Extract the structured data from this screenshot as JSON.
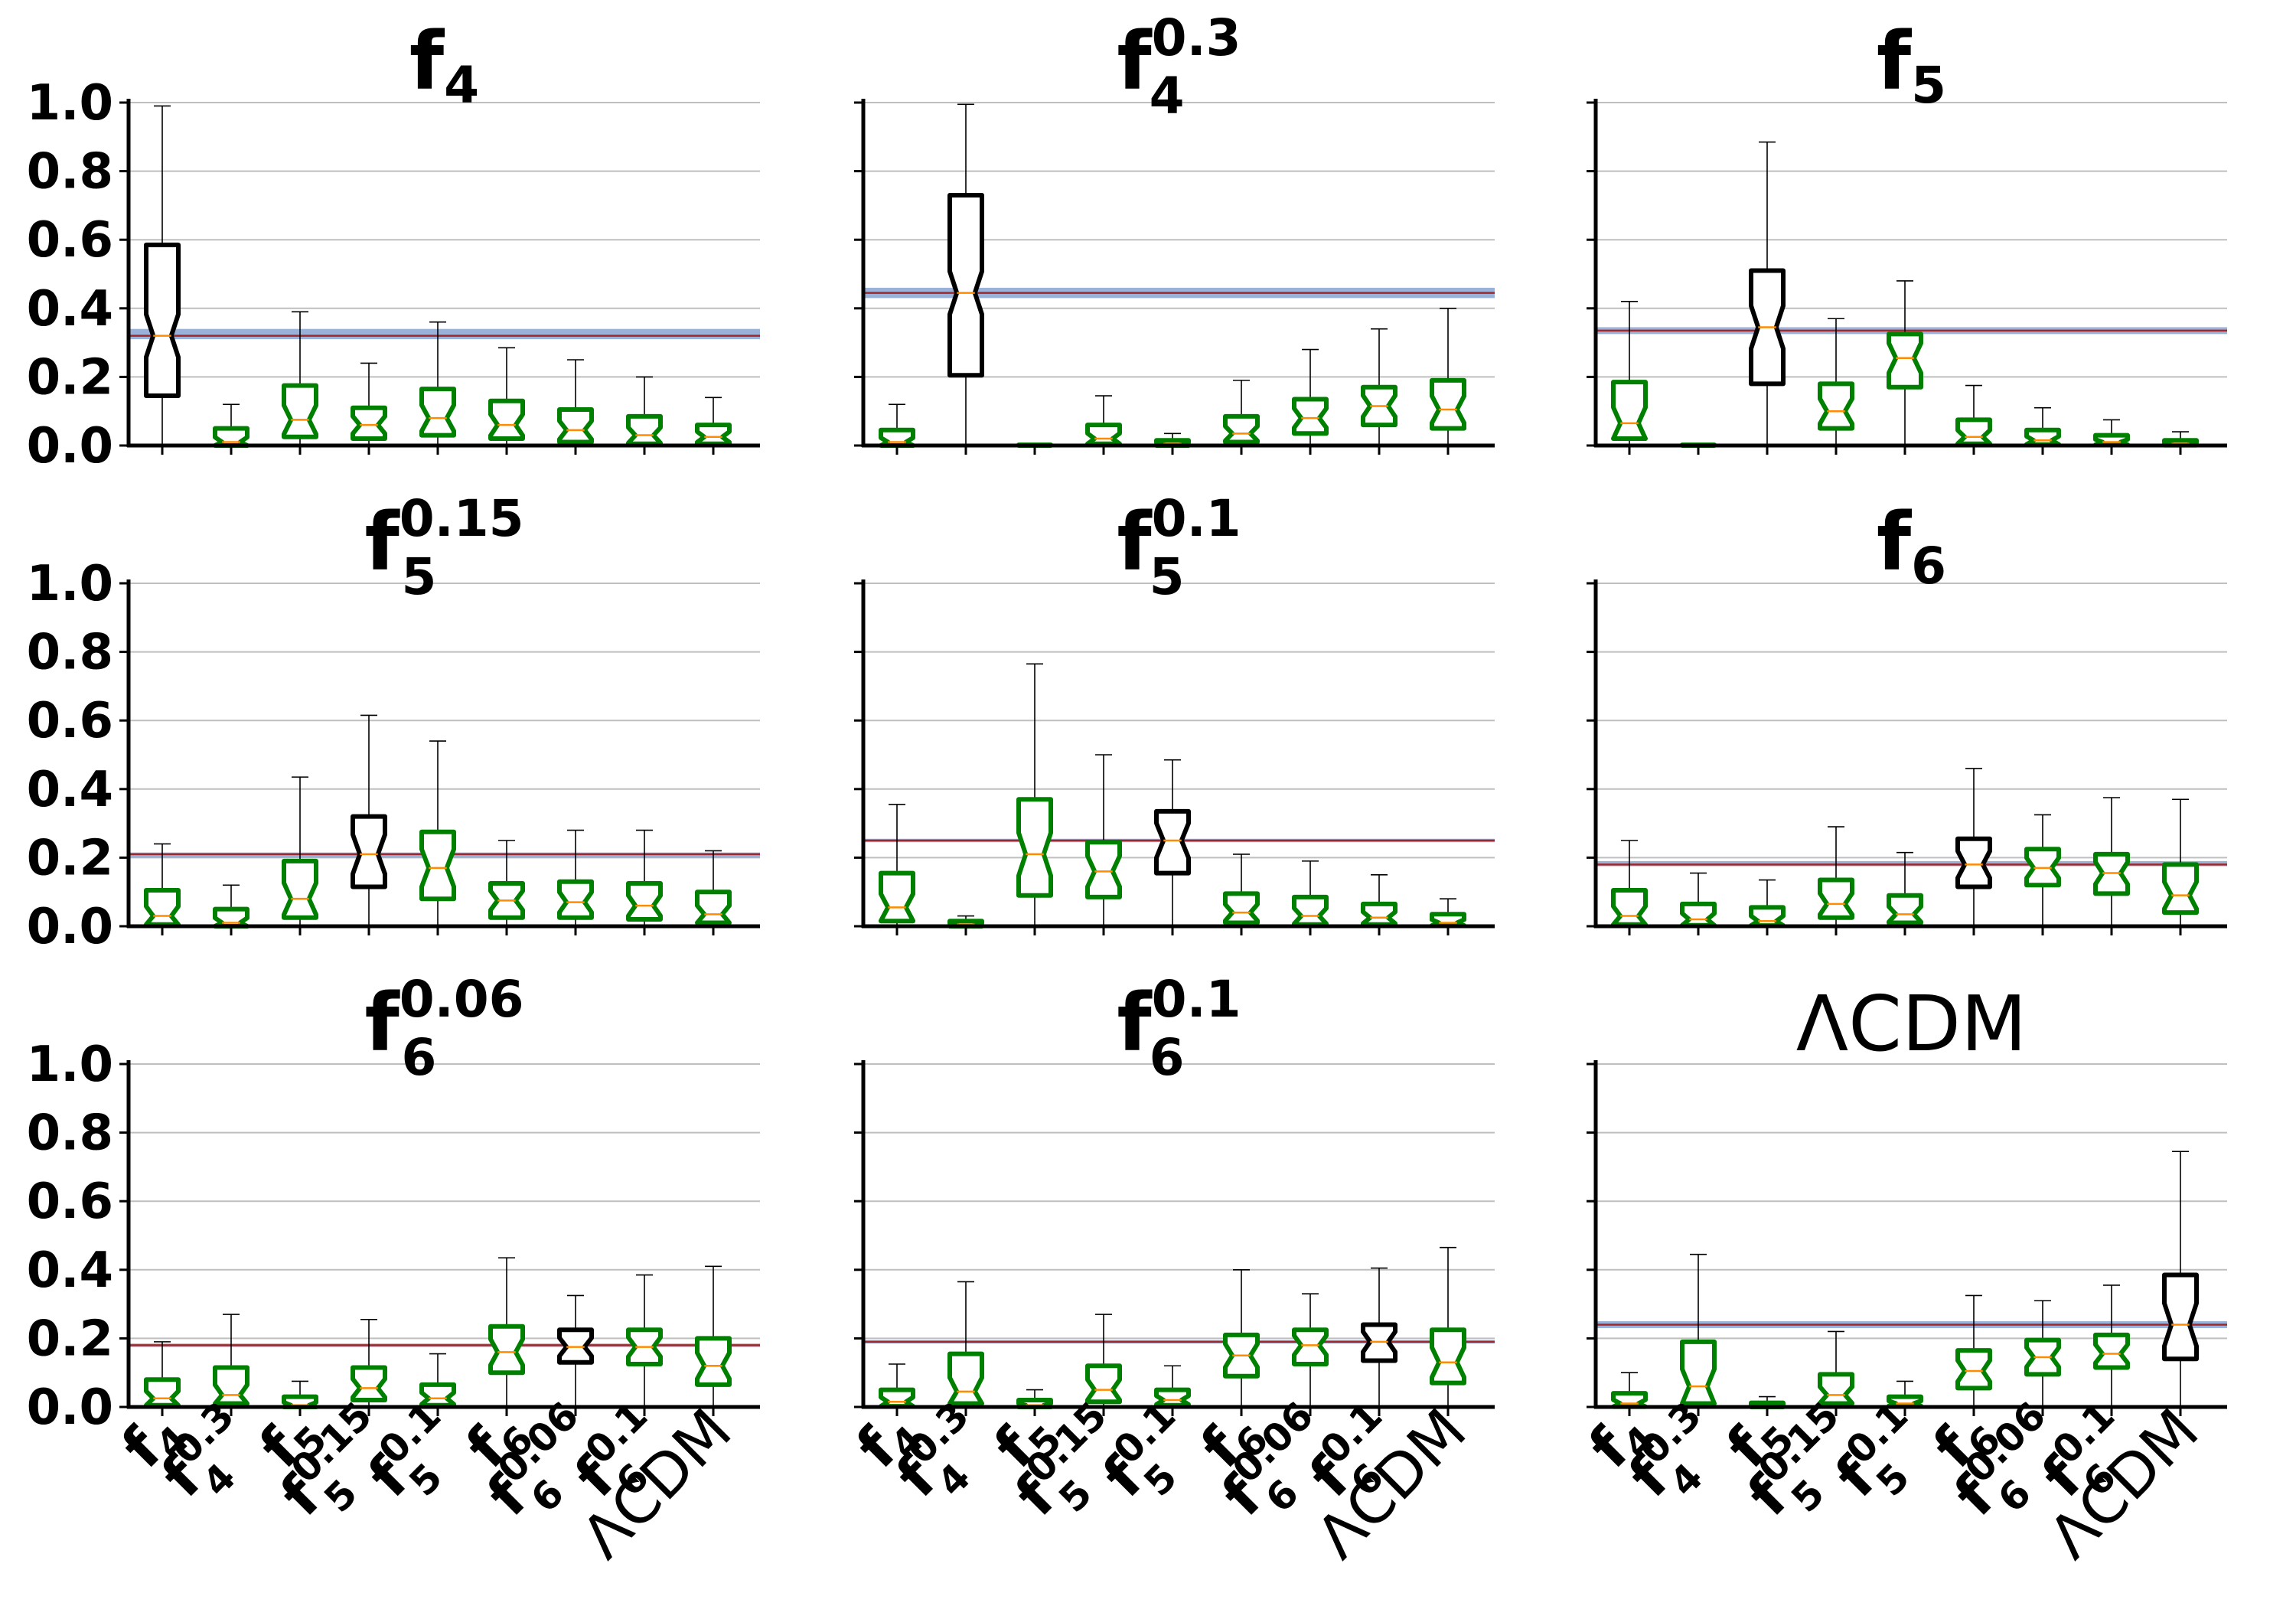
{
  "figure": {
    "categories": [
      {
        "main": "f",
        "sub": "4",
        "sup": ""
      },
      {
        "main": "f",
        "sub": "4",
        "sup": "0.3"
      },
      {
        "main": "f",
        "sub": "5",
        "sup": ""
      },
      {
        "main": "f",
        "sub": "5",
        "sup": "0.15"
      },
      {
        "main": "f",
        "sub": "5",
        "sup": "0.1"
      },
      {
        "main": "f",
        "sub": "6",
        "sup": ""
      },
      {
        "main": "f",
        "sub": "6",
        "sup": "0.06"
      },
      {
        "main": "f",
        "sub": "6",
        "sup": "0.1"
      },
      {
        "main": "ΛCDM",
        "sub": "",
        "sup": ""
      }
    ],
    "y_ticks": [
      "0.0",
      "0.2",
      "0.4",
      "0.6",
      "0.8",
      "1.0"
    ],
    "colors": {
      "highlight_box": "#000000",
      "other_box": "#008000",
      "median": "#ff8c00",
      "whisker": "#000000",
      "reference_fill": "#8fa9d6",
      "reference_line": "#a02828",
      "grid": "#bfbfbf"
    }
  },
  "chart_data": [
    {
      "type": "boxplot",
      "title": {
        "main": "f",
        "sub": "4",
        "sup": ""
      },
      "ylim": [
        0,
        1
      ],
      "grid": "horizontal",
      "reference": {
        "value": 0.32,
        "band": [
          0.31,
          0.34
        ]
      },
      "highlight_index": 0,
      "boxes": [
        {
          "min": 0.0,
          "q1": 0.145,
          "median": 0.32,
          "q3": 0.585,
          "max": 0.99
        },
        {
          "min": 0.0,
          "q1": 0.0,
          "median": 0.01,
          "q3": 0.05,
          "max": 0.12
        },
        {
          "min": 0.0,
          "q1": 0.025,
          "median": 0.075,
          "q3": 0.175,
          "max": 0.39
        },
        {
          "min": 0.0,
          "q1": 0.02,
          "median": 0.06,
          "q3": 0.11,
          "max": 0.24
        },
        {
          "min": 0.0,
          "q1": 0.03,
          "median": 0.08,
          "q3": 0.165,
          "max": 0.36
        },
        {
          "min": 0.0,
          "q1": 0.02,
          "median": 0.06,
          "q3": 0.13,
          "max": 0.285
        },
        {
          "min": 0.0,
          "q1": 0.01,
          "median": 0.045,
          "q3": 0.105,
          "max": 0.25
        },
        {
          "min": 0.0,
          "q1": 0.005,
          "median": 0.03,
          "q3": 0.085,
          "max": 0.2
        },
        {
          "min": 0.0,
          "q1": 0.005,
          "median": 0.025,
          "q3": 0.06,
          "max": 0.14
        }
      ]
    },
    {
      "type": "boxplot",
      "title": {
        "main": "f",
        "sub": "4",
        "sup": "0.3"
      },
      "ylim": [
        0,
        1
      ],
      "grid": "horizontal",
      "reference": {
        "value": 0.445,
        "band": [
          0.43,
          0.46
        ]
      },
      "highlight_index": 1,
      "boxes": [
        {
          "min": 0.0,
          "q1": 0.0,
          "median": 0.01,
          "q3": 0.045,
          "max": 0.12
        },
        {
          "min": 0.0,
          "q1": 0.205,
          "median": 0.445,
          "q3": 0.73,
          "max": 0.995
        },
        {
          "min": 0.0,
          "q1": 0.0,
          "median": 0.0,
          "q3": 0.002,
          "max": 0.005
        },
        {
          "min": 0.0,
          "q1": 0.005,
          "median": 0.02,
          "q3": 0.06,
          "max": 0.145
        },
        {
          "min": 0.0,
          "q1": 0.0,
          "median": 0.005,
          "q3": 0.015,
          "max": 0.035
        },
        {
          "min": 0.0,
          "q1": 0.01,
          "median": 0.035,
          "q3": 0.085,
          "max": 0.19
        },
        {
          "min": 0.0,
          "q1": 0.035,
          "median": 0.08,
          "q3": 0.135,
          "max": 0.28
        },
        {
          "min": 0.0,
          "q1": 0.06,
          "median": 0.115,
          "q3": 0.17,
          "max": 0.34
        },
        {
          "min": 0.0,
          "q1": 0.05,
          "median": 0.105,
          "q3": 0.19,
          "max": 0.4
        }
      ]
    },
    {
      "type": "boxplot",
      "title": {
        "main": "f",
        "sub": "5",
        "sup": ""
      },
      "ylim": [
        0,
        1
      ],
      "grid": "horizontal",
      "reference": {
        "value": 0.335,
        "band": [
          0.325,
          0.345
        ]
      },
      "highlight_index": 2,
      "boxes": [
        {
          "min": 0.0,
          "q1": 0.02,
          "median": 0.065,
          "q3": 0.185,
          "max": 0.42
        },
        {
          "min": 0.0,
          "q1": 0.0,
          "median": 0.0,
          "q3": 0.002,
          "max": 0.005
        },
        {
          "min": 0.0,
          "q1": 0.18,
          "median": 0.345,
          "q3": 0.51,
          "max": 0.885
        },
        {
          "min": 0.0,
          "q1": 0.05,
          "median": 0.1,
          "q3": 0.18,
          "max": 0.37
        },
        {
          "min": 0.0,
          "q1": 0.17,
          "median": 0.255,
          "q3": 0.325,
          "max": 0.48
        },
        {
          "min": 0.0,
          "q1": 0.005,
          "median": 0.025,
          "q3": 0.075,
          "max": 0.175
        },
        {
          "min": 0.0,
          "q1": 0.003,
          "median": 0.015,
          "q3": 0.045,
          "max": 0.11
        },
        {
          "min": 0.0,
          "q1": 0.002,
          "median": 0.01,
          "q3": 0.03,
          "max": 0.075
        },
        {
          "min": 0.0,
          "q1": 0.001,
          "median": 0.005,
          "q3": 0.015,
          "max": 0.04
        }
      ]
    },
    {
      "type": "boxplot",
      "title": {
        "main": "f",
        "sub": "5",
        "sup": "0.15"
      },
      "ylim": [
        0,
        1
      ],
      "grid": "horizontal",
      "reference": {
        "value": 0.21,
        "band": [
          0.2,
          0.215
        ]
      },
      "highlight_index": 3,
      "boxes": [
        {
          "min": 0.0,
          "q1": 0.005,
          "median": 0.03,
          "q3": 0.105,
          "max": 0.24
        },
        {
          "min": 0.0,
          "q1": 0.0,
          "median": 0.01,
          "q3": 0.05,
          "max": 0.12
        },
        {
          "min": 0.0,
          "q1": 0.025,
          "median": 0.08,
          "q3": 0.19,
          "max": 0.435
        },
        {
          "min": 0.0,
          "q1": 0.115,
          "median": 0.21,
          "q3": 0.32,
          "max": 0.615
        },
        {
          "min": 0.0,
          "q1": 0.08,
          "median": 0.17,
          "q3": 0.275,
          "max": 0.54
        },
        {
          "min": 0.0,
          "q1": 0.025,
          "median": 0.075,
          "q3": 0.125,
          "max": 0.25
        },
        {
          "min": 0.0,
          "q1": 0.025,
          "median": 0.07,
          "q3": 0.13,
          "max": 0.28
        },
        {
          "min": 0.0,
          "q1": 0.02,
          "median": 0.06,
          "q3": 0.125,
          "max": 0.28
        },
        {
          "min": 0.0,
          "q1": 0.01,
          "median": 0.035,
          "q3": 0.1,
          "max": 0.22
        }
      ]
    },
    {
      "type": "boxplot",
      "title": {
        "main": "f",
        "sub": "5",
        "sup": "0.1"
      },
      "ylim": [
        0,
        1
      ],
      "grid": "horizontal",
      "reference": {
        "value": 0.25,
        "band": [
          0.245,
          0.255
        ]
      },
      "highlight_index": 4,
      "boxes": [
        {
          "min": 0.0,
          "q1": 0.015,
          "median": 0.055,
          "q3": 0.155,
          "max": 0.355
        },
        {
          "min": 0.0,
          "q1": 0.0,
          "median": 0.005,
          "q3": 0.015,
          "max": 0.03
        },
        {
          "min": 0.0,
          "q1": 0.09,
          "median": 0.21,
          "q3": 0.37,
          "max": 0.765
        },
        {
          "min": 0.0,
          "q1": 0.085,
          "median": 0.16,
          "q3": 0.245,
          "max": 0.5
        },
        {
          "min": 0.0,
          "q1": 0.155,
          "median": 0.25,
          "q3": 0.335,
          "max": 0.485
        },
        {
          "min": 0.0,
          "q1": 0.01,
          "median": 0.04,
          "q3": 0.095,
          "max": 0.21
        },
        {
          "min": 0.0,
          "q1": 0.005,
          "median": 0.03,
          "q3": 0.085,
          "max": 0.19
        },
        {
          "min": 0.0,
          "q1": 0.005,
          "median": 0.025,
          "q3": 0.065,
          "max": 0.15
        },
        {
          "min": 0.0,
          "q1": 0.002,
          "median": 0.01,
          "q3": 0.035,
          "max": 0.08
        }
      ]
    },
    {
      "type": "boxplot",
      "title": {
        "main": "f",
        "sub": "6",
        "sup": ""
      },
      "ylim": [
        0,
        1
      ],
      "grid": "horizontal",
      "reference": {
        "value": 0.18,
        "band": [
          0.175,
          0.19
        ]
      },
      "highlight_index": 5,
      "boxes": [
        {
          "min": 0.0,
          "q1": 0.005,
          "median": 0.03,
          "q3": 0.105,
          "max": 0.25
        },
        {
          "min": 0.0,
          "q1": 0.003,
          "median": 0.02,
          "q3": 0.065,
          "max": 0.155
        },
        {
          "min": 0.0,
          "q1": 0.002,
          "median": 0.015,
          "q3": 0.055,
          "max": 0.135
        },
        {
          "min": 0.0,
          "q1": 0.025,
          "median": 0.065,
          "q3": 0.135,
          "max": 0.29
        },
        {
          "min": 0.0,
          "q1": 0.01,
          "median": 0.035,
          "q3": 0.09,
          "max": 0.215
        },
        {
          "min": 0.0,
          "q1": 0.115,
          "median": 0.18,
          "q3": 0.255,
          "max": 0.46
        },
        {
          "min": 0.0,
          "q1": 0.12,
          "median": 0.17,
          "q3": 0.225,
          "max": 0.325
        },
        {
          "min": 0.0,
          "q1": 0.095,
          "median": 0.155,
          "q3": 0.21,
          "max": 0.375
        },
        {
          "min": 0.0,
          "q1": 0.04,
          "median": 0.09,
          "q3": 0.18,
          "max": 0.37
        }
      ]
    },
    {
      "type": "boxplot",
      "title": {
        "main": "f",
        "sub": "6",
        "sup": "0.06"
      },
      "ylim": [
        0,
        1
      ],
      "grid": "horizontal",
      "reference": {
        "value": 0.18,
        "band": [
          0.175,
          0.185
        ]
      },
      "highlight_index": 6,
      "boxes": [
        {
          "min": 0.0,
          "q1": 0.005,
          "median": 0.025,
          "q3": 0.08,
          "max": 0.19
        },
        {
          "min": 0.0,
          "q1": 0.01,
          "median": 0.035,
          "q3": 0.115,
          "max": 0.27
        },
        {
          "min": 0.0,
          "q1": 0.0,
          "median": 0.005,
          "q3": 0.03,
          "max": 0.075
        },
        {
          "min": 0.0,
          "q1": 0.02,
          "median": 0.055,
          "q3": 0.115,
          "max": 0.255
        },
        {
          "min": 0.0,
          "q1": 0.005,
          "median": 0.025,
          "q3": 0.065,
          "max": 0.155
        },
        {
          "min": 0.0,
          "q1": 0.1,
          "median": 0.16,
          "q3": 0.235,
          "max": 0.435
        },
        {
          "min": 0.0,
          "q1": 0.13,
          "median": 0.175,
          "q3": 0.225,
          "max": 0.325
        },
        {
          "min": 0.0,
          "q1": 0.125,
          "median": 0.175,
          "q3": 0.225,
          "max": 0.385
        },
        {
          "min": 0.0,
          "q1": 0.065,
          "median": 0.12,
          "q3": 0.2,
          "max": 0.41
        }
      ]
    },
    {
      "type": "boxplot",
      "title": {
        "main": "f",
        "sub": "6",
        "sup": "0.1"
      },
      "ylim": [
        0,
        1
      ],
      "grid": "horizontal",
      "reference": {
        "value": 0.19,
        "band": [
          0.185,
          0.195
        ]
      },
      "highlight_index": 7,
      "boxes": [
        {
          "min": 0.0,
          "q1": 0.002,
          "median": 0.015,
          "q3": 0.05,
          "max": 0.125
        },
        {
          "min": 0.0,
          "q1": 0.01,
          "median": 0.045,
          "q3": 0.155,
          "max": 0.365
        },
        {
          "min": 0.0,
          "q1": 0.0,
          "median": 0.005,
          "q3": 0.02,
          "max": 0.05
        },
        {
          "min": 0.0,
          "q1": 0.015,
          "median": 0.05,
          "q3": 0.12,
          "max": 0.27
        },
        {
          "min": 0.0,
          "q1": 0.005,
          "median": 0.02,
          "q3": 0.05,
          "max": 0.12
        },
        {
          "min": 0.0,
          "q1": 0.09,
          "median": 0.15,
          "q3": 0.21,
          "max": 0.4
        },
        {
          "min": 0.0,
          "q1": 0.125,
          "median": 0.18,
          "q3": 0.225,
          "max": 0.33
        },
        {
          "min": 0.0,
          "q1": 0.135,
          "median": 0.19,
          "q3": 0.24,
          "max": 0.405
        },
        {
          "min": 0.0,
          "q1": 0.07,
          "median": 0.13,
          "q3": 0.225,
          "max": 0.465
        }
      ]
    },
    {
      "type": "boxplot",
      "title": {
        "main": "ΛCDM",
        "sub": "",
        "sup": ""
      },
      "ylim": [
        0,
        1
      ],
      "grid": "horizontal",
      "reference": {
        "value": 0.24,
        "band": [
          0.23,
          0.25
        ]
      },
      "highlight_index": 8,
      "boxes": [
        {
          "min": 0.0,
          "q1": 0.001,
          "median": 0.01,
          "q3": 0.04,
          "max": 0.1
        },
        {
          "min": 0.0,
          "q1": 0.01,
          "median": 0.06,
          "q3": 0.19,
          "max": 0.445
        },
        {
          "min": 0.0,
          "q1": 0.0,
          "median": 0.003,
          "q3": 0.012,
          "max": 0.03
        },
        {
          "min": 0.0,
          "q1": 0.01,
          "median": 0.035,
          "q3": 0.095,
          "max": 0.22
        },
        {
          "min": 0.0,
          "q1": 0.003,
          "median": 0.01,
          "q3": 0.03,
          "max": 0.075
        },
        {
          "min": 0.0,
          "q1": 0.055,
          "median": 0.105,
          "q3": 0.165,
          "max": 0.325
        },
        {
          "min": 0.0,
          "q1": 0.095,
          "median": 0.145,
          "q3": 0.195,
          "max": 0.31
        },
        {
          "min": 0.0,
          "q1": 0.115,
          "median": 0.155,
          "q3": 0.21,
          "max": 0.355
        },
        {
          "min": 0.0,
          "q1": 0.14,
          "median": 0.24,
          "q3": 0.385,
          "max": 0.745
        }
      ]
    }
  ]
}
